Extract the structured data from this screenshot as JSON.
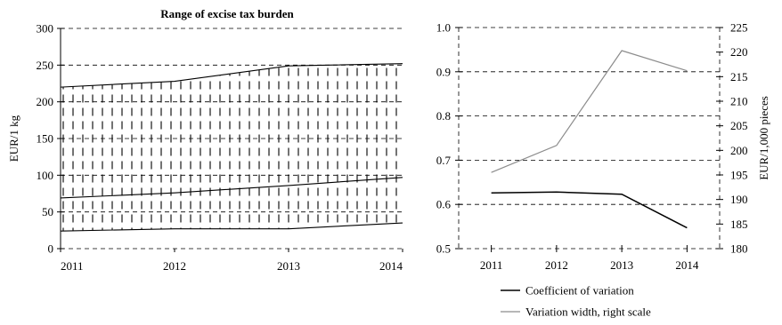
{
  "chart_data": [
    {
      "type": "area",
      "title": "Range of excise tax burden",
      "xlabel": "",
      "ylabel": "EUR/1 kg",
      "categories": [
        "2011",
        "2012",
        "2013",
        "2014"
      ],
      "ylim": [
        0,
        300
      ],
      "yticks": [
        0,
        50,
        100,
        150,
        200,
        250,
        300
      ],
      "grid": "horizontal-dashed",
      "series": [
        {
          "values": [
            220,
            228,
            249,
            252
          ]
        },
        {
          "values": [
            69,
            76,
            86,
            97
          ]
        },
        {
          "values": [
            24,
            27,
            27,
            35
          ]
        }
      ]
    },
    {
      "type": "line",
      "title": "",
      "xlabel": "",
      "ylabel_right": "EUR/1,000 pieces",
      "categories": [
        "2011",
        "2012",
        "2013",
        "2014"
      ],
      "ylim": [
        0.5,
        1.0
      ],
      "yticks": [
        "0.5",
        "0.6",
        "0.7",
        "0.8",
        "0.9",
        "1.0"
      ],
      "ylim_right": [
        180,
        225
      ],
      "yticks_right": [
        180,
        185,
        190,
        195,
        200,
        205,
        210,
        215,
        220,
        225
      ],
      "grid": "horizontal-dashed",
      "legend_position": "bottom",
      "series": [
        {
          "name": "Coefficient of variation",
          "axis": "left",
          "color": "#000000",
          "values": [
            0.626,
            0.628,
            0.623,
            0.547
          ]
        },
        {
          "name": "Variation width, right scale",
          "axis": "right",
          "color": "#8c8c8c",
          "values": [
            195.5,
            201,
            220.3,
            216.2
          ]
        }
      ]
    }
  ]
}
